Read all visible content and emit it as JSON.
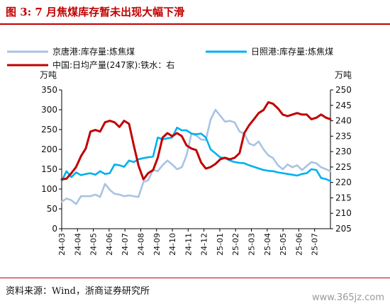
{
  "figure": {
    "title": "图 3:   7 月焦煤库存暂未出现大幅下滑",
    "source": "资料来源：Wind，浙商证券研究所",
    "watermark": "www.365jz.com"
  },
  "chart_data": {
    "type": "line",
    "title": "",
    "y_left_unit": "万吨",
    "y_right_unit": "万吨",
    "y_left_lim": [
      0,
      350
    ],
    "y_left_ticks": [
      0,
      50,
      100,
      150,
      200,
      250,
      300,
      350
    ],
    "y_right_lim": [
      205,
      250
    ],
    "y_right_ticks": [
      205,
      210,
      215,
      220,
      225,
      230,
      235,
      240,
      245,
      250
    ],
    "x_tick_labels": [
      "24-03",
      "24-04",
      "24-05",
      "24-06",
      "24-07",
      "24-08",
      "24-09",
      "24-10",
      "24-11",
      "24-12",
      "25-01",
      "25-02",
      "25-03",
      "25-04",
      "25-05",
      "25-06",
      "25-07"
    ],
    "x_lim_months": [
      0,
      17
    ],
    "grid": false,
    "legend_position": "top",
    "series": [
      {
        "name": "京唐港:库存量:炼焦煤",
        "axis": "left",
        "color": "#a8c3e2",
        "x": [
          0.0,
          0.3,
          0.61,
          0.91,
          1.22,
          1.52,
          1.82,
          2.13,
          2.43,
          2.74,
          3.04,
          3.34,
          3.65,
          3.95,
          4.26,
          4.56,
          4.86,
          5.17,
          5.47,
          5.78,
          6.08,
          6.38,
          6.69,
          6.99,
          7.3,
          7.6,
          7.9,
          8.21,
          8.51,
          8.82,
          9.12,
          9.42,
          9.73,
          10.03,
          10.33,
          10.64,
          10.94,
          11.25,
          11.55,
          11.85,
          12.16,
          12.46,
          12.77,
          13.07,
          13.37,
          13.68,
          13.98,
          14.29,
          14.59,
          14.89,
          15.2,
          15.5,
          15.8,
          16.11,
          16.41,
          16.72,
          17.0
        ],
        "y": [
          68,
          76,
          72,
          62,
          82,
          82,
          82,
          86,
          80,
          113,
          98,
          88,
          86,
          82,
          84,
          82,
          80,
          118,
          122,
          148,
          145,
          160,
          172,
          162,
          150,
          155,
          185,
          240,
          235,
          225,
          224,
          275,
          300,
          285,
          270,
          272,
          268,
          245,
          240,
          215,
          210,
          220,
          200,
          185,
          178,
          160,
          150,
          162,
          155,
          160,
          148,
          158,
          168,
          165,
          155,
          150,
          145
        ]
      },
      {
        "name": "日照港:库存量:炼焦煤",
        "axis": "left",
        "color": "#00b0f0",
        "x": [
          0.0,
          0.3,
          0.61,
          0.91,
          1.22,
          1.52,
          1.82,
          2.13,
          2.43,
          2.74,
          3.04,
          3.34,
          3.65,
          3.95,
          4.26,
          4.56,
          4.86,
          5.17,
          5.47,
          5.78,
          6.08,
          6.38,
          6.69,
          6.99,
          7.3,
          7.6,
          7.9,
          8.21,
          8.51,
          8.82,
          9.12,
          9.42,
          9.73,
          10.03,
          10.33,
          10.64,
          10.94,
          11.25,
          11.55,
          11.85,
          12.16,
          12.46,
          12.77,
          13.07,
          13.37,
          13.68,
          13.98,
          14.29,
          14.59,
          14.89,
          15.2,
          15.5,
          15.8,
          16.11,
          16.41,
          16.72,
          17.0
        ],
        "y": [
          120,
          145,
          130,
          142,
          135,
          138,
          140,
          136,
          145,
          138,
          140,
          162,
          160,
          156,
          172,
          168,
          175,
          178,
          180,
          182,
          230,
          225,
          228,
          230,
          255,
          248,
          248,
          240,
          238,
          240,
          230,
          200,
          190,
          180,
          178,
          172,
          168,
          166,
          165,
          160,
          156,
          152,
          148,
          146,
          145,
          142,
          140,
          138,
          136,
          134,
          138,
          140,
          150,
          148,
          128,
          125,
          120
        ]
      },
      {
        "name": "中国:日均产量(247家):铁水：右",
        "axis": "right",
        "color": "#c00000",
        "x": [
          0.0,
          0.3,
          0.61,
          0.91,
          1.22,
          1.52,
          1.82,
          2.13,
          2.43,
          2.74,
          3.04,
          3.34,
          3.65,
          3.95,
          4.26,
          4.56,
          4.86,
          5.17,
          5.47,
          5.78,
          6.08,
          6.38,
          6.69,
          6.99,
          7.3,
          7.6,
          7.9,
          8.21,
          8.51,
          8.82,
          9.12,
          9.42,
          9.73,
          10.03,
          10.33,
          10.64,
          10.94,
          11.25,
          11.55,
          11.85,
          12.16,
          12.46,
          12.77,
          13.07,
          13.37,
          13.68,
          13.98,
          14.29,
          14.59,
          14.89,
          15.2,
          15.5,
          15.8,
          16.11,
          16.41,
          16.72,
          17.0
        ],
        "y": [
          221.0,
          221.2,
          223.0,
          225.0,
          228.5,
          231.0,
          236.5,
          237.0,
          236.5,
          239.5,
          240.0,
          239.5,
          238.0,
          240.0,
          239.0,
          232.0,
          225.5,
          221.0,
          223.0,
          224.0,
          228.0,
          234.5,
          236.0,
          235.0,
          236.0,
          235.0,
          232.0,
          231.0,
          230.5,
          226.5,
          224.5,
          225.0,
          226.0,
          227.5,
          228.0,
          227.5,
          228.0,
          229.5,
          236.0,
          238.5,
          240.5,
          242.5,
          243.5,
          246.0,
          245.5,
          244.0,
          242.0,
          241.5,
          242.0,
          242.5,
          242.0,
          242.0,
          240.5,
          241.0,
          242.0,
          241.0,
          240.5
        ]
      }
    ]
  }
}
